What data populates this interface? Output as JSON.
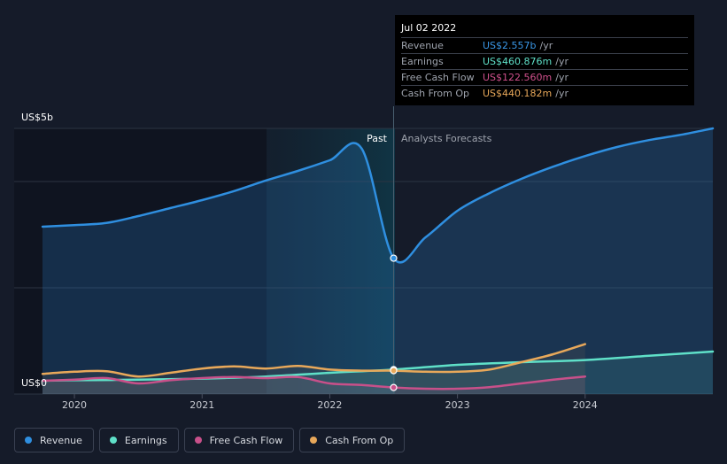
{
  "colors": {
    "revenue": "#2f8fe0",
    "earnings": "#5fe0c8",
    "free_cash_flow": "#c8508a",
    "cash_from_op": "#e8a85a",
    "background": "#151b29"
  },
  "tooltip": {
    "date": "Jul 02 2022",
    "rows": [
      {
        "label": "Revenue",
        "value": "US$2.557b",
        "unit": "/yr",
        "color": "#3a97e6"
      },
      {
        "label": "Earnings",
        "value": "US$460.876m",
        "unit": "/yr",
        "color": "#5fe0c8"
      },
      {
        "label": "Free Cash Flow",
        "value": "US$122.560m",
        "unit": "/yr",
        "color": "#d0508c"
      },
      {
        "label": "Cash From Op",
        "value": "US$440.182m",
        "unit": "/yr",
        "color": "#e8a85a"
      }
    ]
  },
  "legend": [
    {
      "label": "Revenue",
      "color": "#2f8fe0"
    },
    {
      "label": "Earnings",
      "color": "#5fe0c8"
    },
    {
      "label": "Free Cash Flow",
      "color": "#c8508a"
    },
    {
      "label": "Cash From Op",
      "color": "#e8a85a"
    }
  ],
  "chart_data": {
    "type": "line",
    "y_top_label": "US$5b",
    "y_bottom_label": "US$0",
    "ylim": [
      0,
      5
    ],
    "xlim": [
      2019.75,
      2025.0
    ],
    "x_ticks": [
      2020,
      2021,
      2022,
      2023,
      2024
    ],
    "x_tick_labels": [
      "2020",
      "2021",
      "2022",
      "2023",
      "2024"
    ],
    "past_label": "Past",
    "forecast_label": "Analysts Forecasts",
    "divider_x": 2022.5,
    "gridlines": [
      5.0,
      4.0,
      2.0,
      0.0
    ],
    "series": [
      {
        "name": "Revenue",
        "key": "revenue",
        "x": [
          2019.75,
          2020.0,
          2020.25,
          2020.5,
          2020.75,
          2021.0,
          2021.25,
          2021.5,
          2021.75,
          2022.0,
          2022.25,
          2022.5,
          2022.75,
          2023.0,
          2023.25,
          2023.5,
          2023.75,
          2024.0,
          2024.25,
          2024.5,
          2024.75,
          2025.0
        ],
        "y": [
          3.15,
          3.18,
          3.22,
          3.35,
          3.5,
          3.65,
          3.82,
          4.02,
          4.2,
          4.4,
          4.62,
          2.557,
          2.95,
          3.45,
          3.78,
          4.05,
          4.28,
          4.48,
          4.65,
          4.78,
          4.88,
          5.0
        ]
      },
      {
        "name": "Earnings",
        "key": "earnings",
        "x": [
          2019.75,
          2020.0,
          2020.5,
          2021.0,
          2021.5,
          2022.0,
          2022.5,
          2023.0,
          2023.5,
          2024.0,
          2024.5,
          2025.0
        ],
        "y": [
          0.25,
          0.26,
          0.27,
          0.29,
          0.33,
          0.4,
          0.461,
          0.55,
          0.6,
          0.64,
          0.72,
          0.8
        ]
      },
      {
        "name": "Free Cash Flow",
        "key": "free_cash_flow",
        "x": [
          2019.75,
          2020.0,
          2020.25,
          2020.5,
          2020.75,
          2021.0,
          2021.25,
          2021.5,
          2021.75,
          2022.0,
          2022.25,
          2022.5,
          2022.75,
          2023.0,
          2023.25,
          2023.5,
          2023.75,
          2024.0
        ],
        "y": [
          0.25,
          0.27,
          0.3,
          0.2,
          0.26,
          0.3,
          0.32,
          0.3,
          0.32,
          0.2,
          0.17,
          0.123,
          0.1,
          0.1,
          0.13,
          0.2,
          0.27,
          0.33
        ]
      },
      {
        "name": "Cash From Op",
        "key": "cash_from_op",
        "x": [
          2019.75,
          2020.0,
          2020.25,
          2020.5,
          2020.75,
          2021.0,
          2021.25,
          2021.5,
          2021.75,
          2022.0,
          2022.25,
          2022.5,
          2022.75,
          2023.0,
          2023.25,
          2023.5,
          2023.75,
          2024.0
        ],
        "y": [
          0.38,
          0.42,
          0.43,
          0.33,
          0.4,
          0.48,
          0.52,
          0.48,
          0.53,
          0.46,
          0.44,
          0.44,
          0.42,
          0.42,
          0.46,
          0.6,
          0.75,
          0.94
        ]
      }
    ]
  }
}
